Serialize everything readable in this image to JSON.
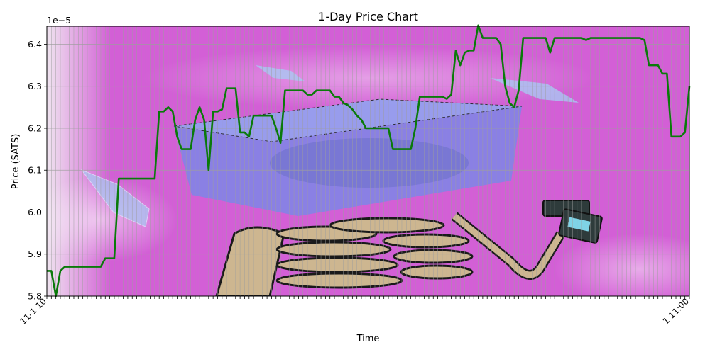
{
  "chart_data": {
    "type": "line",
    "title": "1-Day Price Chart",
    "xlabel": "Time",
    "ylabel": "Price (SATS)",
    "y_multiplier_label": "1e−5",
    "ylim": [
      5.8,
      6.443
    ],
    "y_ticks": [
      5.8,
      5.9,
      6.0,
      6.1,
      6.2,
      6.3,
      6.4
    ],
    "y_tick_labels": [
      "5.8",
      "5.9",
      "6.0",
      "6.1",
      "6.2",
      "6.3",
      "6.4"
    ],
    "grid": true,
    "background_colors": {
      "plot": "#d35fd6",
      "page": "#ffffff",
      "grid": "#9e9e9e"
    },
    "series": [
      {
        "color": "#0a7a0a",
        "values": [
          5.86,
          5.86,
          5.8,
          5.86,
          5.87,
          5.87,
          5.87,
          5.87,
          5.87,
          5.87,
          5.87,
          5.87,
          5.87,
          5.89,
          5.89,
          5.89,
          6.08,
          6.08,
          6.08,
          6.08,
          6.08,
          6.08,
          6.08,
          6.08,
          6.08,
          6.24,
          6.24,
          6.25,
          6.24,
          6.18,
          6.15,
          6.15,
          6.15,
          6.22,
          6.25,
          6.22,
          6.1,
          6.24,
          6.24,
          6.245,
          6.295,
          6.295,
          6.295,
          6.19,
          6.19,
          6.18,
          6.23,
          6.23,
          6.23,
          6.23,
          6.23,
          6.2,
          6.165,
          6.29,
          6.29,
          6.29,
          6.29,
          6.29,
          6.28,
          6.28,
          6.29,
          6.29,
          6.29,
          6.29,
          6.275,
          6.275,
          6.26,
          6.255,
          6.245,
          6.23,
          6.22,
          6.2,
          6.2,
          6.2,
          6.2,
          6.2,
          6.2,
          6.15,
          6.15,
          6.15,
          6.15,
          6.15,
          6.2,
          6.275,
          6.275,
          6.275,
          6.275,
          6.275,
          6.275,
          6.27,
          6.28,
          6.385,
          6.35,
          6.38,
          6.385,
          6.385,
          6.445,
          6.415,
          6.415,
          6.415,
          6.415,
          6.4,
          6.3,
          6.26,
          6.25,
          6.29,
          6.415,
          6.415,
          6.415,
          6.415,
          6.415,
          6.415,
          6.38,
          6.415,
          6.415,
          6.415,
          6.415,
          6.415,
          6.415,
          6.415,
          6.41,
          6.415,
          6.415,
          6.415,
          6.415,
          6.415,
          6.415,
          6.415,
          6.415,
          6.415,
          6.415,
          6.415,
          6.415,
          6.41,
          6.35,
          6.35,
          6.35,
          6.33,
          6.33,
          6.18,
          6.18,
          6.18,
          6.19,
          6.3
        ]
      }
    ],
    "x_tick_first": "11-1 10",
    "x_tick_last": "1 11:00"
  }
}
